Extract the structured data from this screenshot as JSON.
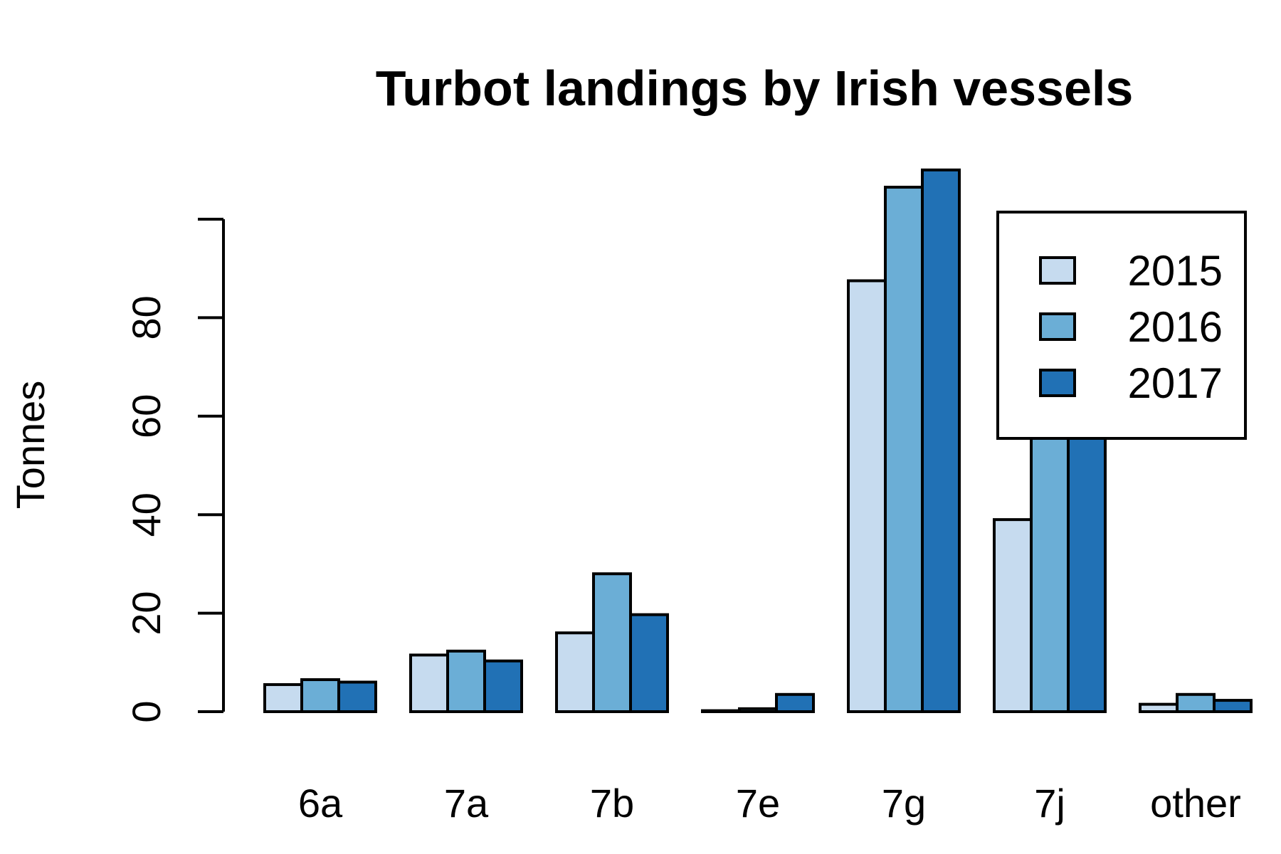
{
  "chart_data": {
    "type": "bar",
    "title": "Turbot landings by Irish vessels",
    "xlabel": "",
    "ylabel": "Tonnes",
    "categories": [
      "6a",
      "7a",
      "7b",
      "7e",
      "7g",
      "7j",
      "other"
    ],
    "series": [
      {
        "name": "2015",
        "color": "#c6dbef",
        "values": [
          5.5,
          11.5,
          16,
          0.2,
          87.5,
          39,
          1.5
        ]
      },
      {
        "name": "2016",
        "color": "#6baed6",
        "values": [
          6.5,
          12.3,
          28,
          0.6,
          106.5,
          90,
          3.5
        ]
      },
      {
        "name": "2017",
        "color": "#2171b5",
        "values": [
          6,
          10.3,
          19.7,
          3.5,
          110,
          90,
          2.3
        ]
      }
    ],
    "ylim": [
      0,
      100
    ],
    "yticks": [
      0,
      20,
      40,
      60,
      80
    ],
    "grid": false,
    "legend_position": "top-right"
  }
}
